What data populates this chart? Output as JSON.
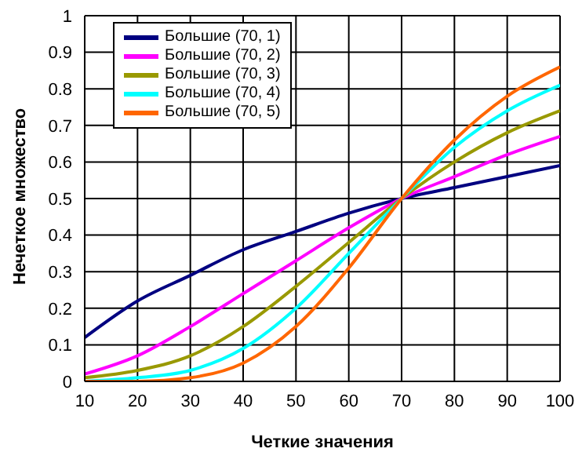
{
  "chart_data": {
    "type": "line",
    "xlabel": "Четкие значения",
    "ylabel": "Нечеткое множество",
    "x": [
      10,
      20,
      30,
      40,
      50,
      60,
      70,
      80,
      90,
      100
    ],
    "series": [
      {
        "name": "Большие (70, 1)",
        "color": "#000080",
        "values": [
          0.12,
          0.22,
          0.29,
          0.36,
          0.41,
          0.46,
          0.5,
          0.53,
          0.56,
          0.59
        ]
      },
      {
        "name": "Большие (70, 2)",
        "color": "#ff00ff",
        "values": [
          0.02,
          0.07,
          0.15,
          0.24,
          0.33,
          0.42,
          0.5,
          0.56,
          0.62,
          0.67
        ]
      },
      {
        "name": "Большие (70, 3)",
        "color": "#999900",
        "values": [
          0.01,
          0.03,
          0.07,
          0.15,
          0.26,
          0.38,
          0.5,
          0.6,
          0.68,
          0.74
        ]
      },
      {
        "name": "Большие (70, 4)",
        "color": "#00ffff",
        "values": [
          0,
          0.01,
          0.03,
          0.09,
          0.2,
          0.35,
          0.5,
          0.64,
          0.74,
          0.81
        ]
      },
      {
        "name": "Большие (70, 5)",
        "color": "#ff6600",
        "values": [
          0,
          0,
          0.01,
          0.05,
          0.15,
          0.31,
          0.5,
          0.66,
          0.78,
          0.86
        ]
      }
    ],
    "xlim": [
      10,
      100
    ],
    "xticks": [
      10,
      20,
      30,
      40,
      50,
      60,
      70,
      80,
      90,
      100
    ],
    "ylim": [
      0,
      1
    ],
    "yticks": [
      0,
      0.1,
      0.2,
      0.3,
      0.4,
      0.5,
      0.6,
      0.7,
      0.8,
      0.9,
      1
    ],
    "grid": true,
    "legend": "top left",
    "marker": "none",
    "line_style": "solid"
  }
}
